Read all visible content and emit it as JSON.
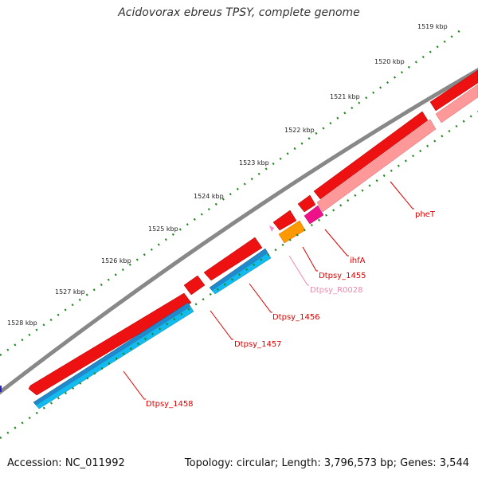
{
  "title": "Acidovorax ebreus TPSY, complete genome",
  "footer": {
    "accession": "Accession: NC_011992",
    "summary": "Topology: circular; Length: 3,796,573 bp; Genes: 3,544"
  },
  "colors": {
    "backbone": "#888888",
    "cds_forward": "#ee1111",
    "cds_reverse_gene": "#ff9999",
    "rna_gene": "#ee1188",
    "rna_feature": "#ff9900",
    "gene_reverse": "#2288cc",
    "cds_reverse": "#11bbee",
    "tick": "#228822",
    "label_red": "#dd0000",
    "label_pink": "#ee88aa"
  },
  "ticks": [
    {
      "label": "1519 kbp",
      "kbp": 1519
    },
    {
      "label": "1520 kbp",
      "kbp": 1520
    },
    {
      "label": "1521 kbp",
      "kbp": 1521
    },
    {
      "label": "1522 kbp",
      "kbp": 1522
    },
    {
      "label": "1523 kbp",
      "kbp": 1523
    },
    {
      "label": "1524 kbp",
      "kbp": 1524
    },
    {
      "label": "1525 kbp",
      "kbp": 1525
    },
    {
      "label": "1526 kbp",
      "kbp": 1526
    },
    {
      "label": "1527 kbp",
      "kbp": 1527
    },
    {
      "label": "1528 kbp",
      "kbp": 1528
    }
  ],
  "gene_labels": [
    {
      "id": "pheT",
      "text": "pheT"
    },
    {
      "id": "ihfA",
      "text": "ihfA"
    },
    {
      "id": "dtpsy1455",
      "text": "Dtpsy_1455"
    },
    {
      "id": "dtpsyR0028",
      "text": "Dtpsy_R0028"
    },
    {
      "id": "dtpsy1456",
      "text": "Dtpsy_1456"
    },
    {
      "id": "dtpsy1457",
      "text": "Dtpsy_1457"
    },
    {
      "id": "dtpsy1458",
      "text": "Dtpsy_1458"
    }
  ]
}
